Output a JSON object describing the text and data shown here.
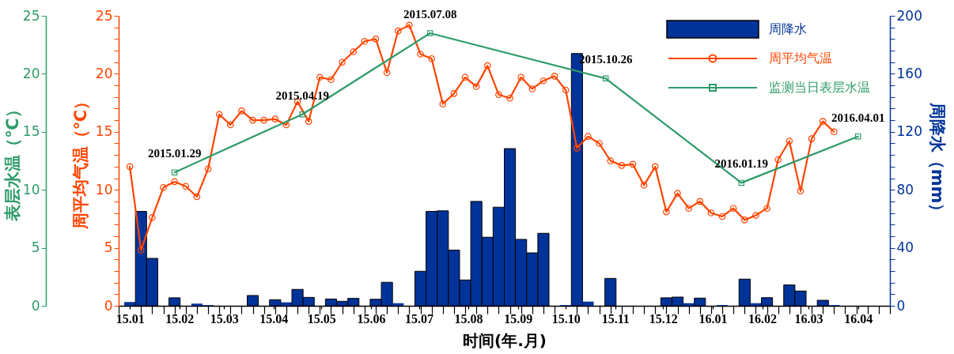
{
  "chart_data": {
    "type": "bar",
    "xlabel": "时间(年.月)",
    "ylabel": "周平均气温（℃）",
    "y2label": "周降水（mm）",
    "y3label": "表层水温（℃）",
    "x": [
      "2015-01-01",
      "2015-01-08",
      "2015-01-15",
      "2015-01-22",
      "2015-01-29",
      "2015-02-05",
      "2015-02-12",
      "2015-02-19",
      "2015-02-26",
      "2015-03-05",
      "2015-03-12",
      "2015-03-19",
      "2015-03-26",
      "2015-04-02",
      "2015-04-09",
      "2015-04-16",
      "2015-04-23",
      "2015-04-30",
      "2015-05-07",
      "2015-05-14",
      "2015-05-21",
      "2015-05-28",
      "2015-06-04",
      "2015-06-11",
      "2015-06-18",
      "2015-06-25",
      "2015-07-02",
      "2015-07-09",
      "2015-07-16",
      "2015-07-23",
      "2015-07-30",
      "2015-08-06",
      "2015-08-13",
      "2015-08-20",
      "2015-08-27",
      "2015-09-03",
      "2015-09-10",
      "2015-09-17",
      "2015-09-24",
      "2015-10-01",
      "2015-10-08",
      "2015-10-15",
      "2015-10-22",
      "2015-10-29",
      "2015-11-05",
      "2015-11-12",
      "2015-11-19",
      "2015-11-26",
      "2015-12-03",
      "2015-12-10",
      "2015-12-17",
      "2015-12-24",
      "2015-12-31",
      "2016-01-07",
      "2016-01-14",
      "2016-01-21",
      "2016-01-28",
      "2016-02-04",
      "2016-02-11",
      "2016-02-18",
      "2016-02-25",
      "2016-03-03",
      "2016-03-10",
      "2016-03-17"
    ],
    "series": [
      {
        "name": "周降水",
        "axis": "y2",
        "color": "#003399",
        "values": [
          2.6,
          65.1,
          32.7,
          0,
          5.5,
          0,
          1.5,
          0.5,
          0,
          0,
          0,
          7.1,
          0,
          4.2,
          2.4,
          11.3,
          5.8,
          0,
          4.7,
          3.1,
          5.1,
          0,
          4.5,
          16.2,
          1.8,
          0,
          23.8,
          65.1,
          65.5,
          38.4,
          17.8,
          72.0,
          47.3,
          68.0,
          108.4,
          45.8,
          36.5,
          50.0,
          0,
          0.5,
          174.0,
          2.9,
          0,
          18.9,
          0,
          0,
          0,
          0,
          5.5,
          6.0,
          1.8,
          5.3,
          0,
          0.5,
          0,
          18.4,
          1.8,
          5.6,
          0,
          14.4,
          10.2,
          0,
          3.8,
          0.5
        ]
      },
      {
        "name": "周平均气温",
        "type": "line",
        "axis": "y",
        "marker": "circle",
        "color": "#ff4500",
        "values": [
          12.0,
          4.8,
          7.6,
          10.2,
          10.7,
          10.3,
          9.4,
          11.8,
          16.5,
          15.6,
          16.8,
          16.0,
          16.0,
          16.1,
          15.6,
          17.6,
          15.9,
          19.7,
          19.5,
          21.0,
          21.9,
          22.8,
          23.0,
          20.1,
          23.7,
          24.2,
          21.7,
          21.3,
          17.4,
          18.3,
          19.7,
          18.9,
          20.7,
          18.2,
          17.9,
          19.7,
          18.7,
          19.4,
          19.8,
          18.6,
          13.6,
          14.6,
          14.0,
          12.5,
          12.1,
          12.2,
          10.4,
          12.0,
          8.1,
          9.7,
          8.4,
          9.0,
          8.0,
          7.7,
          8.4,
          7.4,
          7.8,
          8.4,
          12.6,
          14.2,
          9.9,
          14.4,
          15.9,
          15.0
        ]
      },
      {
        "name": "监测当日表层水温",
        "type": "line",
        "axis": "y3",
        "marker": "square",
        "color": "#2e9b6a",
        "x": [
          "2015-01-29",
          "2015-04-19",
          "2015-07-08",
          "2015-10-26",
          "2016-01-19",
          "2016-04-01"
        ],
        "values": [
          11.5,
          16.5,
          23.5,
          19.6,
          10.6,
          14.6
        ]
      }
    ],
    "xlim": [
      "2014-12-25",
      "2016-04-21"
    ],
    "xticks": [
      {
        "value": "2014-12-25",
        "label": null
      },
      {
        "value": "2015-01-01",
        "label": "15.01"
      },
      {
        "value": "2015-01-08",
        "label": null
      },
      {
        "value": "2015-01-15",
        "label": null
      },
      {
        "value": "2015-01-22",
        "label": null
      },
      {
        "value": "2015-01-29",
        "label": null
      },
      {
        "value": "2015-02-01",
        "label": "15.02"
      },
      {
        "value": "2015-02-05",
        "label": null
      },
      {
        "value": "2015-02-12",
        "label": null
      },
      {
        "value": "2015-02-19",
        "label": null
      },
      {
        "value": "2015-02-26",
        "label": null
      },
      {
        "value": "2015-03-01",
        "label": "15.03"
      },
      {
        "value": "2015-03-05",
        "label": null
      },
      {
        "value": "2015-03-12",
        "label": null
      },
      {
        "value": "2015-03-19",
        "label": null
      },
      {
        "value": "2015-03-26",
        "label": null
      },
      {
        "value": "2015-04-01",
        "label": "15.04"
      },
      {
        "value": "2015-04-02",
        "label": null
      },
      {
        "value": "2015-04-09",
        "label": null
      },
      {
        "value": "2015-04-16",
        "label": null
      },
      {
        "value": "2015-04-23",
        "label": null
      },
      {
        "value": "2015-04-30",
        "label": null
      },
      {
        "value": "2015-05-01",
        "label": "15.05"
      },
      {
        "value": "2015-05-07",
        "label": null
      },
      {
        "value": "2015-05-14",
        "label": null
      },
      {
        "value": "2015-05-21",
        "label": null
      },
      {
        "value": "2015-05-28",
        "label": null
      },
      {
        "value": "2015-06-01",
        "label": "15.06"
      },
      {
        "value": "2015-06-04",
        "label": null
      },
      {
        "value": "2015-06-11",
        "label": null
      },
      {
        "value": "2015-06-18",
        "label": null
      },
      {
        "value": "2015-06-25",
        "label": null
      },
      {
        "value": "2015-07-01",
        "label": "15.07"
      },
      {
        "value": "2015-07-02",
        "label": null
      },
      {
        "value": "2015-07-09",
        "label": null
      },
      {
        "value": "2015-07-16",
        "label": null
      },
      {
        "value": "2015-07-23",
        "label": null
      },
      {
        "value": "2015-07-30",
        "label": null
      },
      {
        "value": "2015-08-01",
        "label": "15.08"
      },
      {
        "value": "2015-08-06",
        "label": null
      },
      {
        "value": "2015-08-13",
        "label": null
      },
      {
        "value": "2015-08-20",
        "label": null
      },
      {
        "value": "2015-08-27",
        "label": null
      },
      {
        "value": "2015-09-01",
        "label": "15.09"
      },
      {
        "value": "2015-09-03",
        "label": null
      },
      {
        "value": "2015-09-10",
        "label": null
      },
      {
        "value": "2015-09-17",
        "label": null
      },
      {
        "value": "2015-09-24",
        "label": null
      },
      {
        "value": "2015-10-01",
        "label": "15.10"
      },
      {
        "value": "2015-10-08",
        "label": null
      },
      {
        "value": "2015-10-15",
        "label": null
      },
      {
        "value": "2015-10-22",
        "label": null
      },
      {
        "value": "2015-10-29",
        "label": null
      },
      {
        "value": "2015-11-01",
        "label": "15.11"
      },
      {
        "value": "2015-11-05",
        "label": null
      },
      {
        "value": "2015-11-12",
        "label": null
      },
      {
        "value": "2015-11-19",
        "label": null
      },
      {
        "value": "2015-11-26",
        "label": null
      },
      {
        "value": "2015-12-01",
        "label": "15.12"
      },
      {
        "value": "2015-12-03",
        "label": null
      },
      {
        "value": "2015-12-10",
        "label": null
      },
      {
        "value": "2015-12-17",
        "label": null
      },
      {
        "value": "2015-12-24",
        "label": null
      },
      {
        "value": "2015-12-31",
        "label": null
      },
      {
        "value": "2016-01-01",
        "label": "16.01"
      },
      {
        "value": "2016-01-07",
        "label": null
      },
      {
        "value": "2016-01-14",
        "label": null
      },
      {
        "value": "2016-01-21",
        "label": null
      },
      {
        "value": "2016-01-28",
        "label": null
      },
      {
        "value": "2016-02-01",
        "label": "16.02"
      },
      {
        "value": "2016-02-04",
        "label": null
      },
      {
        "value": "2016-02-11",
        "label": null
      },
      {
        "value": "2016-02-18",
        "label": null
      },
      {
        "value": "2016-02-25",
        "label": null
      },
      {
        "value": "2016-03-01",
        "label": "16.03"
      },
      {
        "value": "2016-03-03",
        "label": null
      },
      {
        "value": "2016-03-10",
        "label": null
      },
      {
        "value": "2016-03-17",
        "label": null
      },
      {
        "value": "2016-03-24",
        "label": null
      },
      {
        "value": "2016-03-31",
        "label": null
      },
      {
        "value": "2016-04-01",
        "label": "16.04"
      },
      {
        "value": "2016-04-07",
        "label": null
      },
      {
        "value": "2016-04-14",
        "label": null
      },
      {
        "value": "2016-04-21",
        "label": null
      }
    ],
    "ylim": [
      0,
      25
    ],
    "yticks": [
      0,
      {
        "value": 1,
        "label": null
      },
      {
        "value": 2,
        "label": null
      },
      {
        "value": 3,
        "label": null
      },
      {
        "value": 4,
        "label": null
      },
      5,
      {
        "value": 6,
        "label": null
      },
      {
        "value": 7,
        "label": null
      },
      {
        "value": 8,
        "label": null
      },
      {
        "value": 9,
        "label": null
      },
      10,
      {
        "value": 11,
        "label": null
      },
      {
        "value": 12,
        "label": null
      },
      {
        "value": 13,
        "label": null
      },
      {
        "value": 14,
        "label": null
      },
      15,
      {
        "value": 16,
        "label": null
      },
      {
        "value": 17,
        "label": null
      },
      {
        "value": 18,
        "label": null
      },
      {
        "value": 19,
        "label": null
      },
      20,
      {
        "value": 21,
        "label": null
      },
      {
        "value": 22,
        "label": null
      },
      {
        "value": 23,
        "label": null
      },
      {
        "value": 24,
        "label": null
      },
      25
    ],
    "y2lim": [
      0,
      200
    ],
    "y2ticks": [
      0,
      {
        "value": 8,
        "label": null
      },
      {
        "value": 16,
        "label": null
      },
      {
        "value": 24,
        "label": null
      },
      {
        "value": 32,
        "label": null
      },
      40,
      {
        "value": 48,
        "label": null
      },
      {
        "value": 56,
        "label": null
      },
      {
        "value": 64,
        "label": null
      },
      {
        "value": 72,
        "label": null
      },
      80,
      {
        "value": 88,
        "label": null
      },
      {
        "value": 96,
        "label": null
      },
      {
        "value": 104,
        "label": null
      },
      {
        "value": 112,
        "label": null
      },
      120,
      {
        "value": 128,
        "label": null
      },
      {
        "value": 136,
        "label": null
      },
      {
        "value": 144,
        "label": null
      },
      {
        "value": 152,
        "label": null
      },
      160,
      {
        "value": 168,
        "label": null
      },
      {
        "value": 176,
        "label": null
      },
      {
        "value": 184,
        "label": null
      },
      {
        "value": 192,
        "label": null
      },
      200
    ],
    "y3lim": [
      0,
      25
    ],
    "y3ticks": [
      0,
      5,
      10,
      15,
      20,
      25
    ],
    "annotations": [
      {
        "text": "2015.01.29",
        "x": "2015-01-29",
        "y": 11.5
      },
      {
        "text": "2015.04.19",
        "x": "2015-04-19",
        "y": 16.5
      },
      {
        "text": "2015.07.08",
        "x": "2015-07-08",
        "y": 23.5
      },
      {
        "text": "2015.10.26",
        "x": "2015-10-26",
        "y": 19.6
      },
      {
        "text": "2016.01.19",
        "x": "2016-01-19",
        "y": 10.6
      },
      {
        "text": "2016.04.01",
        "x": "2016-04-01",
        "y": 14.6
      }
    ],
    "legend": "top right",
    "grid": false
  }
}
